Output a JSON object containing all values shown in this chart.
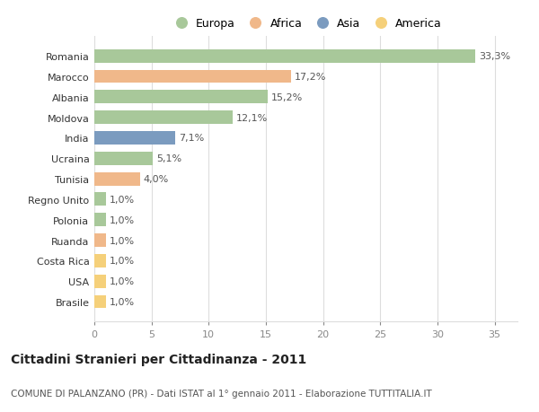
{
  "countries": [
    "Romania",
    "Marocco",
    "Albania",
    "Moldova",
    "India",
    "Ucraina",
    "Tunisia",
    "Regno Unito",
    "Polonia",
    "Ruanda",
    "Costa Rica",
    "USA",
    "Brasile"
  ],
  "values": [
    33.3,
    17.2,
    15.2,
    12.1,
    7.1,
    5.1,
    4.0,
    1.0,
    1.0,
    1.0,
    1.0,
    1.0,
    1.0
  ],
  "labels": [
    "33,3%",
    "17,2%",
    "15,2%",
    "12,1%",
    "7,1%",
    "5,1%",
    "4,0%",
    "1,0%",
    "1,0%",
    "1,0%",
    "1,0%",
    "1,0%",
    "1,0%"
  ],
  "continent": [
    "Europa",
    "Africa",
    "Europa",
    "Europa",
    "Asia",
    "Europa",
    "Africa",
    "Europa",
    "Europa",
    "Africa",
    "America",
    "America",
    "America"
  ],
  "colors": {
    "Europa": "#a8c89a",
    "Africa": "#f0b88a",
    "Asia": "#7b9bbf",
    "America": "#f5d07a"
  },
  "legend_order": [
    "Europa",
    "Africa",
    "Asia",
    "America"
  ],
  "legend_colors": [
    "#a8c89a",
    "#f0b88a",
    "#7b9bbf",
    "#f5d07a"
  ],
  "title": "Cittadini Stranieri per Cittadinanza - 2011",
  "subtitle": "COMUNE DI PALANZANO (PR) - Dati ISTAT al 1° gennaio 2011 - Elaborazione TUTTITALIA.IT",
  "xlim": [
    0,
    37
  ],
  "xticks": [
    0,
    5,
    10,
    15,
    20,
    25,
    30,
    35
  ],
  "background_color": "#ffffff",
  "grid_color": "#dddddd",
  "bar_height": 0.65,
  "label_fontsize": 8,
  "tick_fontsize": 8,
  "title_fontsize": 10,
  "subtitle_fontsize": 7.5
}
